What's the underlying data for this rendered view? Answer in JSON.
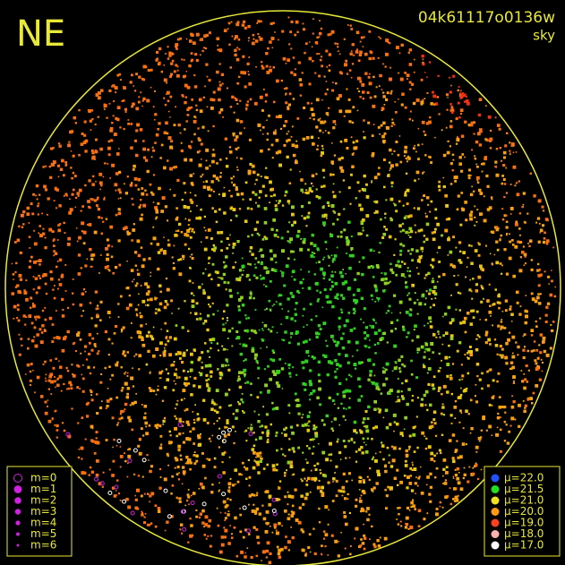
{
  "header": {
    "direction": "NE",
    "frame_id": "04k61117o0136w",
    "mode": "sky"
  },
  "magnitude_legend": {
    "color": "#d020e0",
    "items": [
      "m=0",
      "m=1",
      "m=2",
      "m=3",
      "m=4",
      "m=5",
      "m=6"
    ]
  },
  "brightness_legend": {
    "items": [
      {
        "label": "μ=22.0",
        "color": "#2050ff"
      },
      {
        "label": "μ=21.5",
        "color": "#20e020"
      },
      {
        "label": "μ=21.0",
        "color": "#f0e020"
      },
      {
        "label": "μ=20.0",
        "color": "#ff9a10"
      },
      {
        "label": "μ=19.0",
        "color": "#ff4020"
      },
      {
        "label": "μ=18.0",
        "color": "#ffb0b0"
      },
      {
        "label": "μ=17.0",
        "color": "#ffffff"
      }
    ]
  }
}
